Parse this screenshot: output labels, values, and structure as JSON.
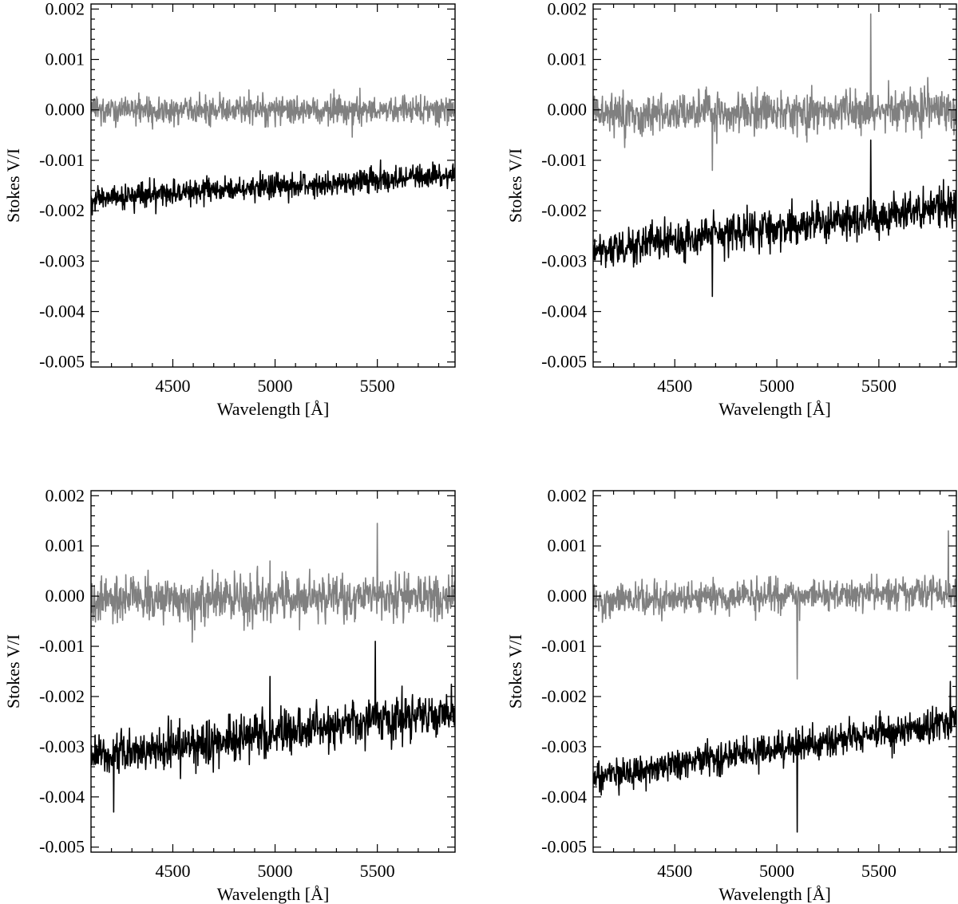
{
  "chart_data": [
    {
      "type": "line",
      "panel": "top-left",
      "xlabel": "Wavelength [Å]",
      "ylabel": "Stokes V/I",
      "xlim": [
        4100,
        5880
      ],
      "ylim": [
        -0.0051,
        0.0021
      ],
      "xticks": [
        4500,
        5000,
        5500
      ],
      "xtick_labels": [
        "4500",
        "5000",
        "5500"
      ],
      "yticks": [
        0.002,
        0.001,
        0.0,
        -0.001,
        -0.002,
        -0.003,
        -0.004,
        -0.005
      ],
      "ytick_labels": [
        "0.002",
        "0.001",
        "0.000",
        "-0.001",
        "-0.002",
        "-0.003",
        "-0.004",
        "-0.005"
      ],
      "grid": false,
      "series": [
        {
          "color": "#808080",
          "x": [
            4100,
            5880
          ],
          "mean": [
            0.0,
            0.0
          ],
          "noise_amplitude": 0.00025,
          "spikes": []
        },
        {
          "color": "#000000",
          "x": [
            4100,
            5880
          ],
          "mean": [
            -0.00175,
            -0.0013
          ],
          "noise_amplitude": 0.00022,
          "spikes": []
        }
      ]
    },
    {
      "type": "line",
      "panel": "top-right",
      "xlabel": "Wavelength [Å]",
      "ylabel": "Stokes V/I",
      "xlim": [
        4100,
        5880
      ],
      "ylim": [
        -0.0051,
        0.0021
      ],
      "xticks": [
        4500,
        5000,
        5500
      ],
      "xtick_labels": [
        "4500",
        "5000",
        "5500"
      ],
      "yticks": [
        0.002,
        0.001,
        0.0,
        -0.001,
        -0.002,
        -0.003,
        -0.004,
        -0.005
      ],
      "ytick_labels": [
        "0.002",
        "0.001",
        "0.000",
        "-0.001",
        "-0.002",
        "-0.003",
        "-0.004",
        "-0.005"
      ],
      "grid": false,
      "series": [
        {
          "color": "#808080",
          "x": [
            4100,
            5880
          ],
          "mean": [
            -0.0001,
            0.0
          ],
          "noise_amplitude": 0.00035,
          "spikes": [
            [
              5460,
              0.0019
            ],
            [
              4685,
              -0.0012
            ]
          ]
        },
        {
          "color": "#000000",
          "x": [
            4100,
            5880
          ],
          "mean": [
            -0.0028,
            -0.0019
          ],
          "noise_amplitude": 0.00033,
          "spikes": [
            [
              4685,
              -0.0037
            ],
            [
              5460,
              -0.0006
            ]
          ]
        }
      ]
    },
    {
      "type": "line",
      "panel": "bottom-left",
      "xlabel": "Wavelength [Å]",
      "ylabel": "Stokes V/I",
      "xlim": [
        4100,
        5880
      ],
      "ylim": [
        -0.0051,
        0.0021
      ],
      "xticks": [
        4500,
        5000,
        5500
      ],
      "xtick_labels": [
        "4500",
        "5000",
        "5500"
      ],
      "yticks": [
        0.002,
        0.001,
        0.0,
        -0.001,
        -0.002,
        -0.003,
        -0.004,
        -0.005
      ],
      "ytick_labels": [
        "0.002",
        "0.001",
        "0.000",
        "-0.001",
        "-0.002",
        "-0.003",
        "-0.004",
        "-0.005"
      ],
      "grid": false,
      "series": [
        {
          "color": "#808080",
          "x": [
            4100,
            5880
          ],
          "mean": [
            -0.0001,
            0.0
          ],
          "noise_amplitude": 0.0004,
          "spikes": [
            [
              5500,
              0.00145
            ],
            [
              4975,
              0.0007
            ]
          ]
        },
        {
          "color": "#000000",
          "x": [
            4100,
            5880
          ],
          "mean": [
            -0.0032,
            -0.0023
          ],
          "noise_amplitude": 0.00038,
          "spikes": [
            [
              5490,
              -0.0009
            ],
            [
              4975,
              -0.0016
            ],
            [
              4210,
              -0.0043
            ]
          ]
        }
      ]
    },
    {
      "type": "line",
      "panel": "bottom-right",
      "xlabel": "Wavelength [Å]",
      "ylabel": "Stokes V/I",
      "xlim": [
        4100,
        5880
      ],
      "ylim": [
        -0.0051,
        0.0021
      ],
      "xticks": [
        4500,
        5000,
        5500
      ],
      "xtick_labels": [
        "4500",
        "5000",
        "5500"
      ],
      "yticks": [
        0.002,
        0.001,
        0.0,
        -0.001,
        -0.002,
        -0.003,
        -0.004,
        -0.005
      ],
      "ytick_labels": [
        "0.002",
        "0.001",
        "0.000",
        "-0.001",
        "-0.002",
        "-0.003",
        "-0.004",
        "-0.005"
      ],
      "grid": false,
      "series": [
        {
          "color": "#808080",
          "x": [
            4100,
            5880
          ],
          "mean": [
            -0.0001,
            0.0001
          ],
          "noise_amplitude": 0.00028,
          "spikes": [
            [
              5100,
              -0.00165
            ],
            [
              5840,
              0.0013
            ]
          ]
        },
        {
          "color": "#000000",
          "x": [
            4100,
            5880
          ],
          "mean": [
            -0.0036,
            -0.0025
          ],
          "noise_amplitude": 0.0003,
          "spikes": [
            [
              5100,
              -0.0047
            ],
            [
              5850,
              -0.0017
            ]
          ]
        }
      ]
    }
  ]
}
